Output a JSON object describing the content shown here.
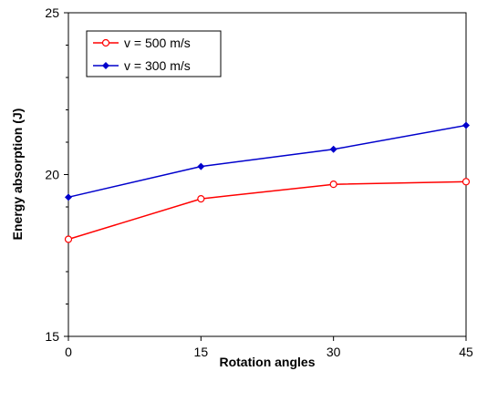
{
  "chart_data": {
    "type": "line",
    "x": [
      0,
      15,
      30,
      45
    ],
    "series": [
      {
        "name": "v = 500 m/s",
        "values": [
          18.0,
          19.25,
          19.7,
          19.78
        ],
        "color": "#ff0000",
        "marker": "open-circle"
      },
      {
        "name": "v = 300 m/s",
        "values": [
          19.3,
          20.25,
          20.78,
          21.52
        ],
        "color": "#0000cc",
        "marker": "filled-diamond"
      }
    ],
    "xlabel": "Rotation angles",
    "ylabel": "Energy absorption (J)",
    "xlim": [
      0,
      45
    ],
    "ylim": [
      15,
      25
    ],
    "xticks": [
      "0",
      "15",
      "30",
      "45"
    ],
    "yticks": [
      "15",
      "20",
      "25"
    ],
    "grid": false,
    "legend_position": "top-left"
  }
}
